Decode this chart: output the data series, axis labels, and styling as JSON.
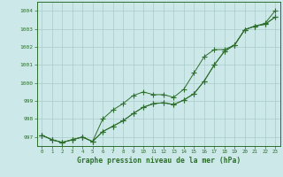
{
  "x": [
    0,
    1,
    2,
    3,
    4,
    5,
    6,
    7,
    8,
    9,
    10,
    11,
    12,
    13,
    14,
    15,
    16,
    17,
    18,
    19,
    20,
    21,
    22,
    23
  ],
  "line1": [
    997.1,
    996.85,
    996.7,
    996.85,
    997.0,
    996.75,
    997.3,
    997.6,
    997.9,
    998.3,
    998.65,
    998.85,
    998.9,
    998.8,
    999.05,
    999.4,
    1000.1,
    1001.0,
    1001.75,
    1002.1,
    1002.95,
    1003.15,
    1003.25,
    1003.65
  ],
  "line2": [
    997.1,
    996.85,
    996.7,
    996.85,
    997.0,
    996.75,
    998.0,
    998.5,
    998.85,
    999.3,
    999.5,
    999.35,
    999.35,
    999.2,
    999.65,
    1000.55,
    1001.45,
    1001.85,
    1001.85,
    1002.1,
    1002.95,
    1003.15,
    1003.25,
    1003.65
  ],
  "line3": [
    997.1,
    996.85,
    996.7,
    996.85,
    997.0,
    996.75,
    997.3,
    997.6,
    997.9,
    998.3,
    998.65,
    998.85,
    998.9,
    998.8,
    999.05,
    999.4,
    1000.1,
    1001.0,
    1001.75,
    1002.1,
    1002.95,
    1003.15,
    1003.3,
    1004.0
  ],
  "ylim": [
    996.5,
    1004.5
  ],
  "yticks": [
    997,
    998,
    999,
    1000,
    1001,
    1002,
    1003,
    1004
  ],
  "xlim": [
    -0.5,
    23.5
  ],
  "xticks": [
    0,
    1,
    2,
    3,
    4,
    5,
    6,
    7,
    8,
    9,
    10,
    11,
    12,
    13,
    14,
    15,
    16,
    17,
    18,
    19,
    20,
    21,
    22,
    23
  ],
  "xlabel": "Graphe pression niveau de la mer (hPa)",
  "background_color": "#cce8e8",
  "grid_color": "#aacccc",
  "line_color": "#2d6e2d",
  "marker": "+",
  "marker_size": 4,
  "linewidth": 0.7
}
